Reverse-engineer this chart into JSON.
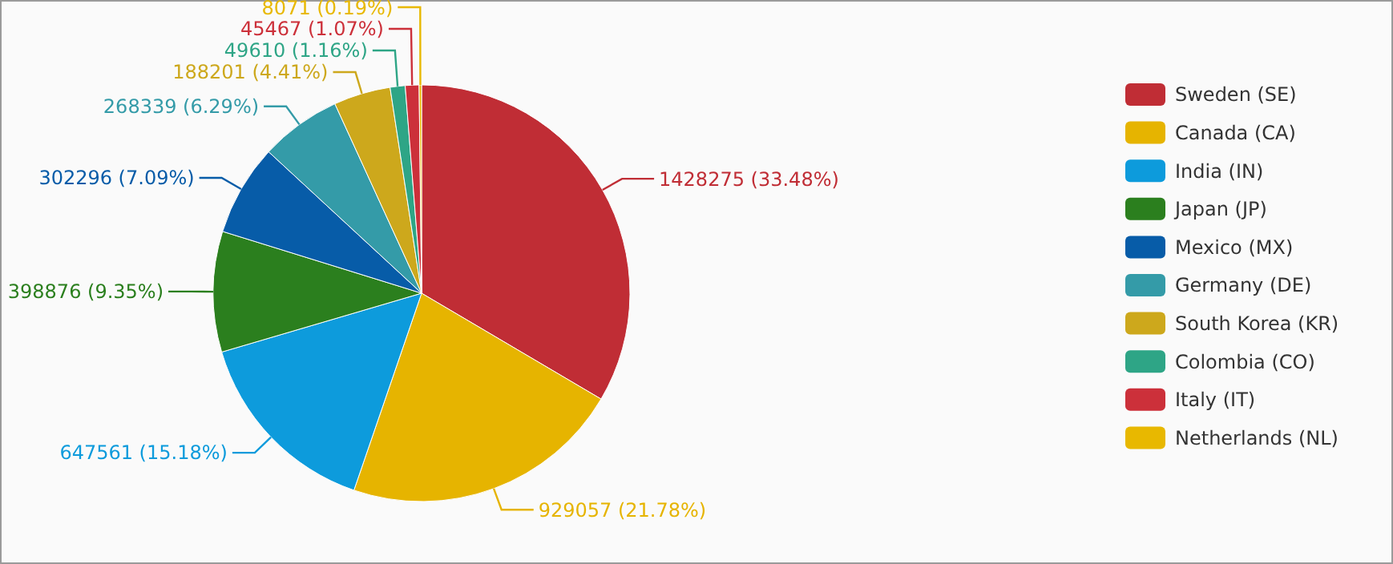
{
  "chart_data": {
    "type": "pie",
    "categories": [
      "Sweden (SE)",
      "Canada (CA)",
      "India (IN)",
      "Japan (JP)",
      "Mexico (MX)",
      "Germany (DE)",
      "South Korea (KR)",
      "Colombia (CO)",
      "Italy (IT)",
      "Netherlands (NL)"
    ],
    "values": [
      1428275,
      929057,
      647561,
      398876,
      302296,
      268339,
      188201,
      49610,
      45467,
      8071
    ],
    "colors": [
      "#c02d35",
      "#e6b400",
      "#0d9bdc",
      "#2b7f1e",
      "#075ca8",
      "#349ba8",
      "#cda81c",
      "#2ea586",
      "#cc303a",
      "#e8b800"
    ],
    "value_labels": [
      "1428275 (33.48%)",
      "929057 (21.78%)",
      "647561 (15.18%)",
      "398876 (9.35%)",
      "302296 (7.09%)",
      "268339 (6.29%)",
      "188201 (4.41%)",
      "49610 (1.16%)",
      "45467 (1.07%)",
      "8071 (0.19%)"
    ],
    "legend": "right"
  }
}
